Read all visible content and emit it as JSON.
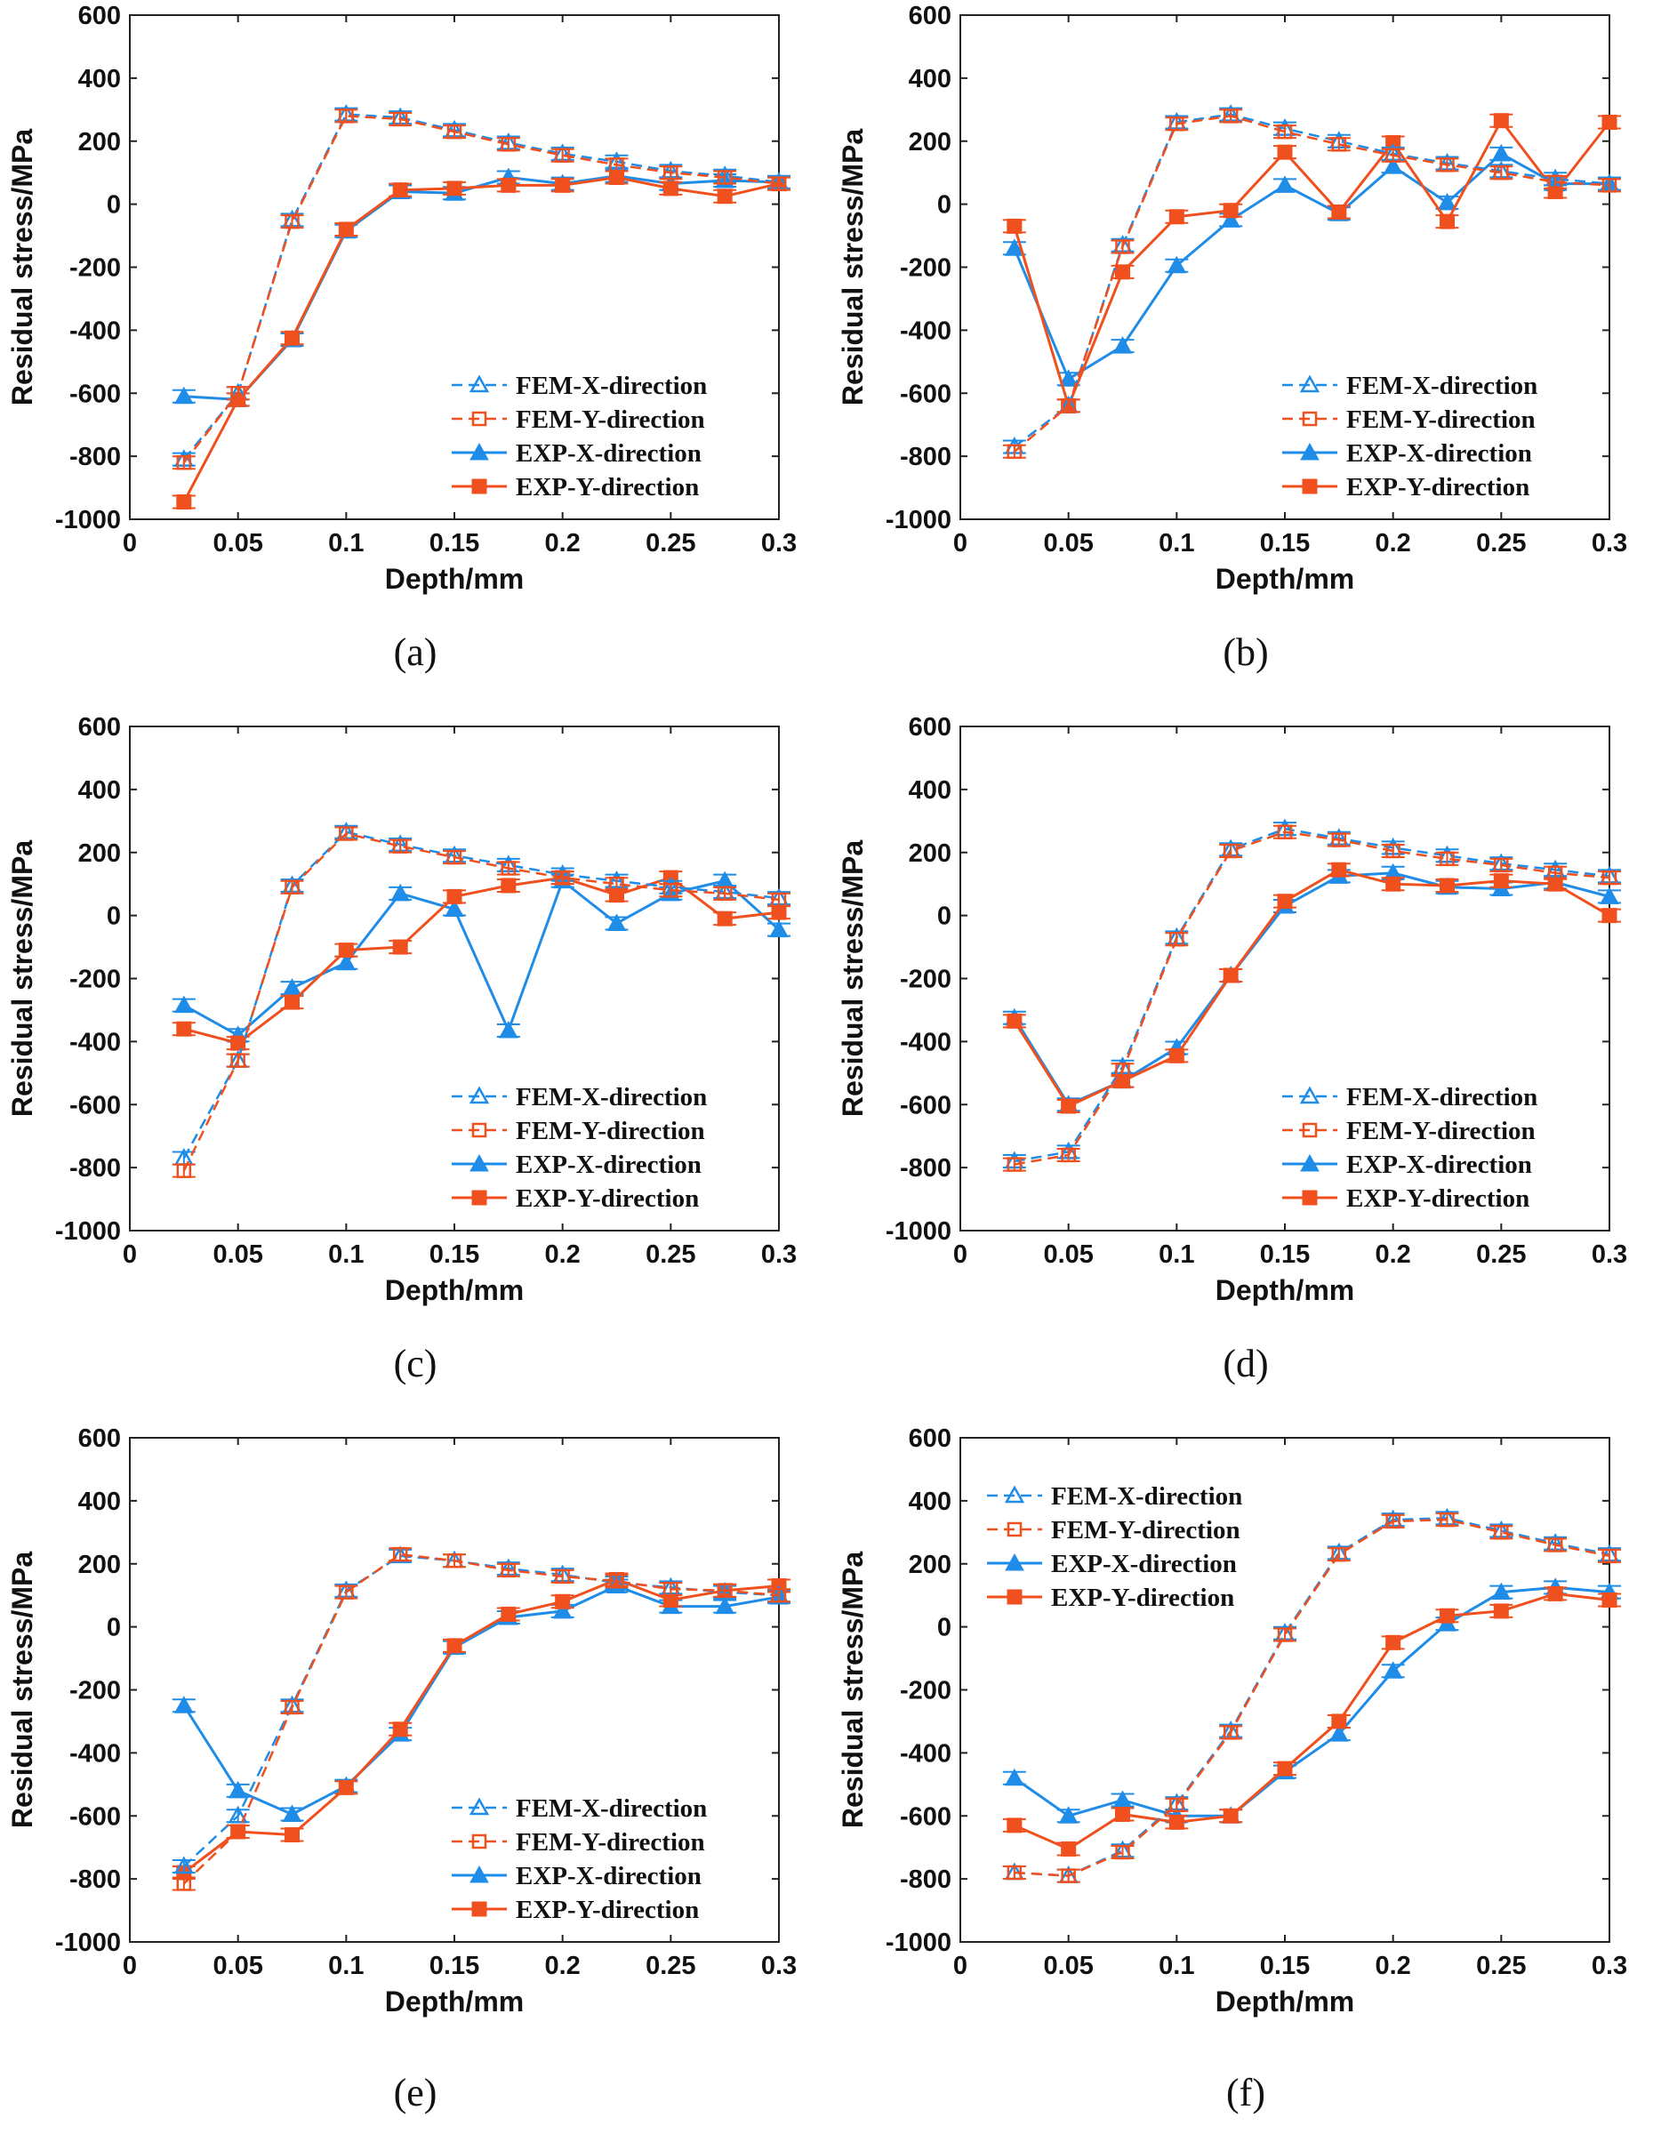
{
  "chart_data": [
    {
      "type": "line",
      "caption": "(a)",
      "xlabel": "Depth/mm",
      "ylabel": "Residual stress/MPa",
      "xlim": [
        0,
        0.3
      ],
      "ylim": [
        -1000,
        600
      ],
      "xticks": [
        "0",
        "0.05",
        "0.1",
        "0.15",
        "0.2",
        "0.25",
        "0.3"
      ],
      "yticks": [
        "600",
        "400",
        "200",
        "0",
        "-200",
        "-400",
        "-600",
        "-800",
        "-1000"
      ],
      "legend_position": "bottom-right",
      "x": [
        0.025,
        0.05,
        0.075,
        0.1,
        0.125,
        0.15,
        0.175,
        0.2,
        0.225,
        0.25,
        0.275,
        0.3
      ],
      "series": [
        {
          "name": "FEM-X-direction",
          "color": "#1f8de8",
          "values": [
            -810,
            -600,
            -50,
            285,
            275,
            235,
            195,
            160,
            135,
            105,
            90,
            70
          ]
        },
        {
          "name": "FEM-Y-direction",
          "color": "#f0501e",
          "values": [
            -820,
            -600,
            -55,
            280,
            270,
            230,
            190,
            155,
            125,
            100,
            85,
            65
          ]
        },
        {
          "name": "EXP-X-direction",
          "color": "#1f8de8",
          "values": [
            -610,
            -620,
            -430,
            -85,
            40,
            35,
            85,
            65,
            90,
            65,
            75,
            70
          ]
        },
        {
          "name": "EXP-Y-direction",
          "color": "#f0501e",
          "values": [
            -945,
            -620,
            -425,
            -80,
            45,
            50,
            60,
            60,
            85,
            50,
            25,
            65
          ]
        }
      ]
    },
    {
      "type": "line",
      "caption": "(b)",
      "xlabel": "Depth/mm",
      "ylabel": "Residual stress/MPa",
      "xlim": [
        0,
        0.3
      ],
      "ylim": [
        -1000,
        600
      ],
      "xticks": [
        "0",
        "0.05",
        "0.1",
        "0.15",
        "0.2",
        "0.25",
        "0.3"
      ],
      "yticks": [
        "600",
        "400",
        "200",
        "0",
        "-200",
        "-400",
        "-600",
        "-800",
        "-1000"
      ],
      "legend_position": "bottom-right",
      "x": [
        0.025,
        0.05,
        0.075,
        0.1,
        0.125,
        0.15,
        0.175,
        0.2,
        0.225,
        0.25,
        0.275,
        0.3
      ],
      "series": [
        {
          "name": "FEM-X-direction",
          "color": "#1f8de8",
          "values": [
            -770,
            -640,
            -130,
            260,
            285,
            240,
            200,
            160,
            130,
            105,
            80,
            65
          ]
        },
        {
          "name": "FEM-Y-direction",
          "color": "#f0501e",
          "values": [
            -785,
            -640,
            -135,
            255,
            280,
            230,
            190,
            155,
            125,
            100,
            70,
            60
          ]
        },
        {
          "name": "EXP-X-direction",
          "color": "#1f8de8",
          "values": [
            -140,
            -555,
            -450,
            -195,
            -50,
            60,
            -30,
            120,
            5,
            160,
            65,
            65
          ]
        },
        {
          "name": "EXP-Y-direction",
          "color": "#f0501e",
          "values": [
            -70,
            -640,
            -215,
            -40,
            -20,
            165,
            -25,
            195,
            -55,
            265,
            40,
            260
          ]
        }
      ]
    },
    {
      "type": "line",
      "caption": "(c)",
      "xlabel": "Depth/mm",
      "ylabel": "Residual stress/MPa",
      "xlim": [
        0,
        0.3
      ],
      "ylim": [
        -1000,
        600
      ],
      "xticks": [
        "0",
        "0.05",
        "0.1",
        "0.15",
        "0.2",
        "0.25",
        "0.3"
      ],
      "yticks": [
        "600",
        "400",
        "200",
        "0",
        "-200",
        "-400",
        "-600",
        "-800",
        "-1000"
      ],
      "legend_position": "bottom-right",
      "x": [
        0.025,
        0.05,
        0.075,
        0.1,
        0.125,
        0.15,
        0.175,
        0.2,
        0.225,
        0.25,
        0.275,
        0.3
      ],
      "series": [
        {
          "name": "FEM-X-direction",
          "color": "#1f8de8",
          "values": [
            -770,
            -460,
            95,
            265,
            225,
            190,
            160,
            130,
            110,
            90,
            75,
            55
          ]
        },
        {
          "name": "FEM-Y-direction",
          "color": "#f0501e",
          "values": [
            -810,
            -460,
            90,
            260,
            220,
            185,
            150,
            120,
            100,
            80,
            70,
            50
          ]
        },
        {
          "name": "EXP-X-direction",
          "color": "#1f8de8",
          "values": [
            -285,
            -380,
            -230,
            -150,
            70,
            20,
            -365,
            110,
            -25,
            70,
            110,
            -45
          ]
        },
        {
          "name": "EXP-Y-direction",
          "color": "#f0501e",
          "values": [
            -360,
            -405,
            -275,
            -110,
            -100,
            60,
            95,
            120,
            65,
            120,
            -10,
            10
          ]
        }
      ]
    },
    {
      "type": "line",
      "caption": "(d)",
      "xlabel": "Depth/mm",
      "ylabel": "Residual stress/MPa",
      "xlim": [
        0,
        0.3
      ],
      "ylim": [
        -1000,
        600
      ],
      "xticks": [
        "0",
        "0.05",
        "0.1",
        "0.15",
        "0.2",
        "0.25",
        "0.3"
      ],
      "yticks": [
        "600",
        "400",
        "200",
        "0",
        "-200",
        "-400",
        "-600",
        "-800",
        "-1000"
      ],
      "legend_position": "bottom-right",
      "x": [
        0.025,
        0.05,
        0.075,
        0.1,
        0.125,
        0.15,
        0.175,
        0.2,
        0.225,
        0.25,
        0.275,
        0.3
      ],
      "series": [
        {
          "name": "FEM-X-direction",
          "color": "#1f8de8",
          "values": [
            -780,
            -750,
            -480,
            -70,
            210,
            275,
            245,
            215,
            190,
            165,
            145,
            125
          ]
        },
        {
          "name": "FEM-Y-direction",
          "color": "#f0501e",
          "values": [
            -790,
            -760,
            -490,
            -75,
            205,
            265,
            240,
            205,
            180,
            160,
            135,
            120
          ]
        },
        {
          "name": "EXP-X-direction",
          "color": "#1f8de8",
          "values": [
            -325,
            -600,
            -525,
            -420,
            -190,
            30,
            125,
            135,
            90,
            85,
            105,
            60
          ]
        },
        {
          "name": "EXP-Y-direction",
          "color": "#f0501e",
          "values": [
            -335,
            -605,
            -525,
            -445,
            -190,
            45,
            145,
            100,
            95,
            110,
            100,
            0
          ]
        }
      ]
    },
    {
      "type": "line",
      "caption": "(e)",
      "xlabel": "Depth/mm",
      "ylabel": "Residual stress/MPa",
      "xlim": [
        0,
        0.3
      ],
      "ylim": [
        -1000,
        600
      ],
      "xticks": [
        "0",
        "0.05",
        "0.1",
        "0.15",
        "0.2",
        "0.25",
        "0.3"
      ],
      "yticks": [
        "600",
        "400",
        "200",
        "0",
        "-200",
        "-400",
        "-600",
        "-800",
        "-1000"
      ],
      "legend_position": "bottom-right",
      "x": [
        0.025,
        0.05,
        0.075,
        0.1,
        0.125,
        0.15,
        0.175,
        0.2,
        0.225,
        0.25,
        0.275,
        0.3
      ],
      "series": [
        {
          "name": "FEM-X-direction",
          "color": "#1f8de8",
          "values": [
            -760,
            -600,
            -250,
            115,
            225,
            210,
            185,
            165,
            140,
            125,
            110,
            100
          ]
        },
        {
          "name": "FEM-Y-direction",
          "color": "#f0501e",
          "values": [
            -815,
            -650,
            -255,
            110,
            230,
            210,
            180,
            160,
            145,
            120,
            115,
            100
          ]
        },
        {
          "name": "EXP-X-direction",
          "color": "#1f8de8",
          "values": [
            -250,
            -520,
            -595,
            -505,
            -340,
            -65,
            30,
            50,
            130,
            65,
            65,
            95
          ]
        },
        {
          "name": "EXP-Y-direction",
          "color": "#f0501e",
          "values": [
            -780,
            -650,
            -660,
            -510,
            -325,
            -60,
            40,
            80,
            150,
            85,
            115,
            130
          ]
        }
      ]
    },
    {
      "type": "line",
      "caption": "(f)",
      "xlabel": "Depth/mm",
      "ylabel": "Residual stress/MPa",
      "xlim": [
        0,
        0.3
      ],
      "ylim": [
        -1000,
        600
      ],
      "xticks": [
        "0",
        "0.05",
        "0.1",
        "0.15",
        "0.2",
        "0.25",
        "0.3"
      ],
      "yticks": [
        "600",
        "400",
        "200",
        "0",
        "-200",
        "-400",
        "-600",
        "-800",
        "-1000"
      ],
      "legend_position": "top-left",
      "x": [
        0.025,
        0.05,
        0.075,
        0.1,
        0.125,
        0.15,
        0.175,
        0.2,
        0.225,
        0.25,
        0.275,
        0.3
      ],
      "series": [
        {
          "name": "FEM-X-direction",
          "color": "#1f8de8",
          "values": [
            -780,
            -790,
            -710,
            -560,
            -330,
            -20,
            235,
            340,
            345,
            305,
            265,
            230
          ]
        },
        {
          "name": "FEM-Y-direction",
          "color": "#f0501e",
          "values": [
            -780,
            -790,
            -715,
            -565,
            -335,
            -25,
            230,
            335,
            340,
            300,
            260,
            225
          ]
        },
        {
          "name": "EXP-X-direction",
          "color": "#1f8de8",
          "values": [
            -480,
            -600,
            -550,
            -600,
            -600,
            -460,
            -340,
            -140,
            10,
            110,
            125,
            110
          ]
        },
        {
          "name": "EXP-Y-direction",
          "color": "#f0501e",
          "values": [
            -630,
            -705,
            -595,
            -620,
            -600,
            -450,
            -300,
            -50,
            35,
            50,
            105,
            85
          ]
        }
      ]
    }
  ]
}
